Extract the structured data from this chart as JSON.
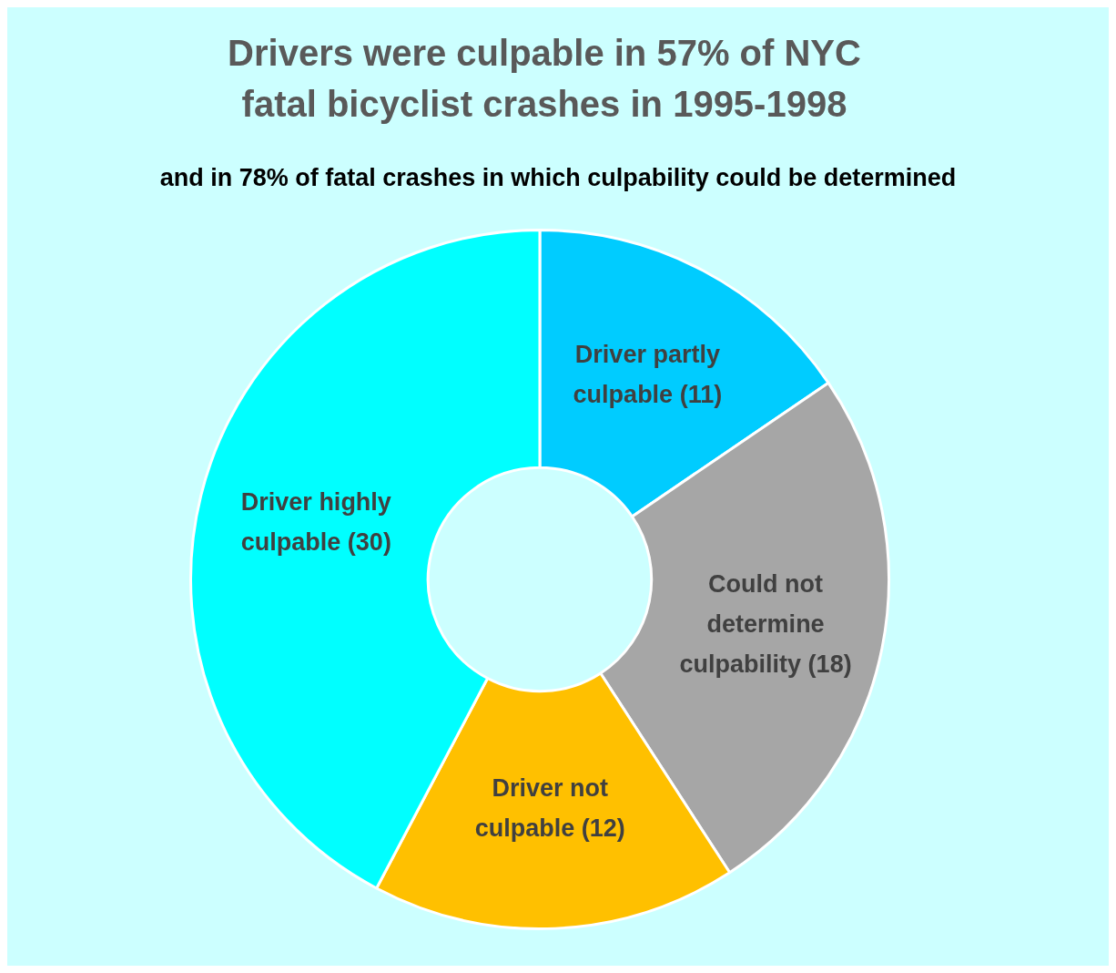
{
  "chart_data": {
    "type": "donut",
    "title": "Drivers were culpable in 57% of NYC fatal bicyclist crashes in 1995-1998",
    "subtitle": "and in 78% of fatal crashes in which culpability could be determined",
    "categories": [
      "Driver partly culpable",
      "Could not determine culpability",
      "Driver not culpable",
      "Driver highly culpable"
    ],
    "values": [
      11,
      18,
      12,
      30
    ],
    "colors": [
      "#00ccff",
      "#a6a6a6",
      "#ffc000",
      "#00ffff"
    ],
    "value_labels": [
      "(11)",
      "(18)",
      "(12)",
      "(30)"
    ],
    "legend": false
  }
}
